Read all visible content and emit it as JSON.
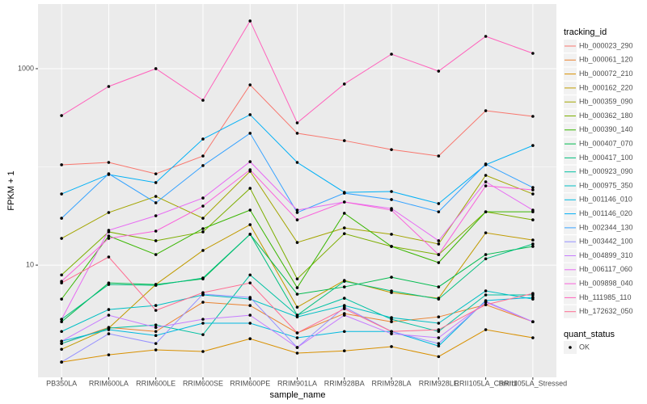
{
  "chart_data": {
    "type": "line",
    "x_label": "sample_name",
    "y_label": "FPKM + 1",
    "categories": [
      "PB350LA",
      "RRIM600LA",
      "RRIM600LE",
      "RRIM600SE",
      "RRIM600PE",
      "RRIM901LA",
      "RRIM928BA",
      "RRIM928LA",
      "RRIM928LE",
      "RRII105LA_Control",
      "RRII105LA_Stressed"
    ],
    "log_y": true,
    "ylim": [
      0.72,
      4550
    ],
    "yticks": [
      10,
      1000
    ],
    "yminorticks": [
      100
    ],
    "grid": true,
    "legend_title": "tracking_id",
    "legend_position": "right",
    "shape_legend": {
      "title": "quant_status",
      "labels": [
        "OK"
      ]
    },
    "point_color": "#000000",
    "series": [
      {
        "name": "Hb_000023_290",
        "color": "#F8766D",
        "values": [
          105,
          111,
          85,
          129,
          684,
          220,
          185,
          150,
          129,
          373,
          327
        ]
      },
      {
        "name": "Hb_000061_120",
        "color": "#EA8331",
        "values": [
          1.59,
          2.32,
          2.11,
          4.19,
          3.88,
          2.04,
          3.21,
          2.65,
          2.97,
          3.95,
          2.65
        ]
      },
      {
        "name": "Hb_000072_210",
        "color": "#D89000",
        "values": [
          1.03,
          1.22,
          1.37,
          1.32,
          1.78,
          1.27,
          1.34,
          1.48,
          1.17,
          2.2,
          1.82
        ]
      },
      {
        "name": "Hb_000162_220",
        "color": "#C09B00",
        "values": [
          1.39,
          2.28,
          6.35,
          14.1,
          25.8,
          3.73,
          6.98,
          5.25,
          4.6,
          21.3,
          18.0
        ]
      },
      {
        "name": "Hb_000359_090",
        "color": "#A3A500",
        "values": [
          18.7,
          34.3,
          50.1,
          30,
          90.2,
          17,
          23.9,
          20.6,
          16.4,
          82,
          53
        ]
      },
      {
        "name": "Hb_000362_180",
        "color": "#7CAE00",
        "values": [
          7.94,
          21.8,
          17.7,
          21.8,
          60.5,
          7.24,
          20.9,
          15.5,
          12.8,
          34.9,
          28.9
        ]
      },
      {
        "name": "Hb_000390_140",
        "color": "#39B600",
        "values": [
          4.51,
          19.8,
          12.8,
          23.5,
          36.3,
          5.89,
          33.7,
          15.5,
          10.6,
          34.9,
          34.9
        ]
      },
      {
        "name": "Hb_000407_070",
        "color": "#00BB4E",
        "values": [
          2.65,
          6.59,
          6.35,
          7.24,
          20.6,
          5.06,
          6.0,
          7.53,
          6.0,
          12.8,
          15.5
        ]
      },
      {
        "name": "Hb_000417_100",
        "color": "#00BF7D",
        "values": [
          2.81,
          6.35,
          6.23,
          7.39,
          20.6,
          3.09,
          6.84,
          5.46,
          4.51,
          11.6,
          16.4
        ]
      },
      {
        "name": "Hb_000923_090",
        "color": "#00C1A3",
        "values": [
          1.59,
          2.28,
          2.46,
          1.96,
          7.94,
          3.09,
          4.6,
          2.81,
          2.11,
          4.97,
          4.97
        ]
      },
      {
        "name": "Hb_000975_350",
        "color": "#00BFC4",
        "values": [
          2.11,
          3.53,
          3.88,
          4.97,
          4.51,
          2.97,
          3.88,
          2.92,
          2.56,
          5.46,
          4.51
        ]
      },
      {
        "name": "Hb_001146_010",
        "color": "#00BAE0",
        "values": [
          1.68,
          2.2,
          1.92,
          2.56,
          2.56,
          1.82,
          2.11,
          2.11,
          1.5,
          4.35,
          4.69
        ]
      },
      {
        "name": "Hb_001146_020",
        "color": "#00B0F6",
        "values": [
          53,
          83.6,
          69.2,
          192,
          340,
          111,
          55,
          56.1,
          42.3,
          105,
          165
        ]
      },
      {
        "name": "Hb_002344_130",
        "color": "#35A2FF",
        "values": [
          30,
          85.1,
          43.1,
          103,
          220,
          34.3,
          54,
          46.5,
          34.9,
          107,
          61.7
        ]
      },
      {
        "name": "Hb_003442_100",
        "color": "#9590FF",
        "values": [
          1.03,
          2.0,
          1.59,
          5.06,
          4.69,
          1.45,
          3.73,
          2.11,
          1.59,
          4.27,
          2.65
        ]
      },
      {
        "name": "Hb_004899_310",
        "color": "#C77CFF",
        "values": [
          1.68,
          3.09,
          2.32,
          2.81,
          3.09,
          1.45,
          3.09,
          2.0,
          1.82,
          4.19,
          2.65
        ]
      },
      {
        "name": "Hb_006117_060",
        "color": "#E76BF3",
        "values": [
          2.81,
          22.6,
          31.8,
          48.2,
          113,
          36.3,
          43.9,
          37.7,
          17.7,
          70.5,
          36.3
        ]
      },
      {
        "name": "Hb_009898_040",
        "color": "#FA62DB",
        "values": [
          6.84,
          18.7,
          22.2,
          39.9,
          93.6,
          28.9,
          43.9,
          36.3,
          12.8,
          64.1,
          58.3
        ]
      },
      {
        "name": "Hb_111985_110",
        "color": "#FF62BC",
        "values": [
          333,
          659,
          1000,
          477,
          3060,
          281,
          698,
          1406,
          944,
          2133,
          1432
        ]
      },
      {
        "name": "Hb_172632_050",
        "color": "#FF6C91",
        "values": [
          6.59,
          12.1,
          3.46,
          5.25,
          6.59,
          2.04,
          3.59,
          2.11,
          2.2,
          3.95,
          5.15
        ]
      }
    ]
  }
}
